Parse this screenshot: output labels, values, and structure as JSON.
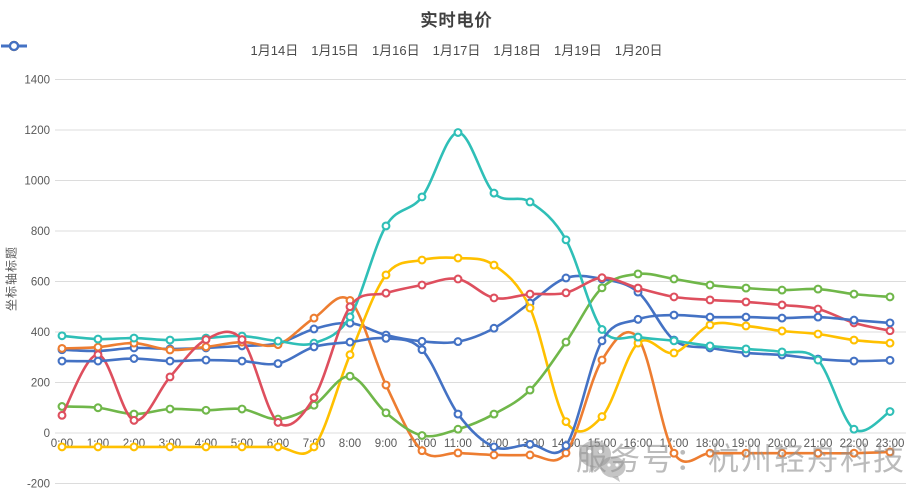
{
  "page": {
    "title": "实时电价"
  },
  "y_axis_title": "坐标轴标题",
  "watermark": {
    "text": "服务号：杭州轻舟科技",
    "icon": "wechat-icon"
  },
  "chart_data": {
    "type": "line",
    "title": "实时电价",
    "xlabel": "",
    "ylabel": "坐标轴标题",
    "ylim": [
      -200,
      1400
    ],
    "y_ticks": [
      1400,
      1200,
      1000,
      800,
      600,
      400,
      200,
      0,
      -200
    ],
    "grid": "horizontal",
    "legend_position": "top",
    "marker": "open-circle",
    "smooth": true,
    "categories": [
      "0:00",
      "1:00",
      "2:00",
      "3:00",
      "4:00",
      "5:00",
      "6:00",
      "7:00",
      "8:00",
      "9:00",
      "10:00",
      "11:00",
      "12:00",
      "13:00",
      "14:00",
      "15:00",
      "16:00",
      "17:00",
      "18:00",
      "19:00",
      "20:00",
      "21:00",
      "22:00",
      "23:00"
    ],
    "series": [
      {
        "name": "1月14日",
        "color": "#4472C4",
        "values": [
          330,
          325,
          337,
          333,
          337,
          345,
          355,
          412,
          435,
          388,
          363,
          362,
          415,
          515,
          614,
          610,
          558,
          368,
          337,
          317,
          309,
          293,
          285,
          288
        ]
      },
      {
        "name": "1月15日",
        "color": "#ED7D31",
        "values": [
          335,
          340,
          356,
          329,
          341,
          360,
          350,
          455,
          525,
          190,
          -70,
          -79,
          -87,
          -87,
          -79,
          289,
          376,
          -80,
          -80,
          -80,
          -80,
          -80,
          -80,
          -75
        ]
      },
      {
        "name": "1月16日",
        "color": "#FFC000",
        "values": [
          -55,
          -55,
          -55,
          -55,
          -55,
          -55,
          -55,
          -55,
          310,
          626,
          685,
          693,
          665,
          495,
          45,
          65,
          356,
          317,
          428,
          424,
          404,
          392,
          368,
          356
        ]
      },
      {
        "name": "1月17日",
        "color": "#70B74A",
        "values": [
          105,
          100,
          75,
          95,
          90,
          95,
          55,
          110,
          225,
          80,
          -10,
          15,
          75,
          170,
          360,
          575,
          630,
          610,
          586,
          574,
          566,
          570,
          550,
          539
        ]
      },
      {
        "name": "1月18日",
        "color": "#2FBFB7",
        "values": [
          385,
          372,
          376,
          368,
          376,
          384,
          364,
          356,
          460,
          820,
          935,
          1190,
          950,
          915,
          765,
          410,
          380,
          365,
          345,
          333,
          321,
          289,
          15,
          85
        ]
      },
      {
        "name": "1月19日",
        "color": "#DE4F5E",
        "values": [
          70,
          310,
          50,
          222,
          370,
          370,
          42,
          140,
          500,
          554,
          586,
          610,
          535,
          550,
          555,
          615,
          574,
          539,
          527,
          519,
          507,
          491,
          436,
          405
        ]
      },
      {
        "name": "1月20日",
        "color": "#4472C4",
        "values": [
          285,
          285,
          295,
          285,
          289,
          285,
          275,
          341,
          360,
          375,
          330,
          75,
          -55,
          -45,
          -50,
          365,
          450,
          467,
          459,
          459,
          455,
          459,
          447,
          436
        ]
      }
    ]
  }
}
